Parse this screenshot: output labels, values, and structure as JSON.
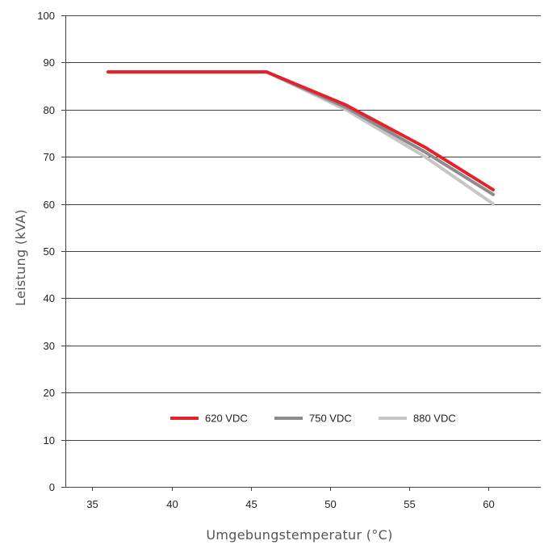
{
  "chart_data": {
    "type": "line",
    "xlabel": "Umgebungstemperatur (°C)",
    "ylabel": "Leistung (kVA)",
    "xlim": [
      33.3,
      63.3
    ],
    "ylim": [
      0,
      100
    ],
    "xticks": [
      35,
      40,
      45,
      50,
      55,
      60
    ],
    "yticks": [
      0,
      10,
      20,
      30,
      40,
      50,
      60,
      70,
      80,
      90,
      100
    ],
    "grid": "horizontal",
    "legend_position": "bottom-center-inside",
    "series": [
      {
        "name": "620 VDC",
        "color": "#e3222b",
        "x": [
          36,
          46,
          51,
          56,
          60.3
        ],
        "y": [
          88,
          88,
          81,
          72,
          63
        ]
      },
      {
        "name": "750 VDC",
        "color": "#8c8c8e",
        "x": [
          36,
          46,
          51,
          56,
          60.3
        ],
        "y": [
          88,
          88,
          80.5,
          71,
          62
        ]
      },
      {
        "name": "880 VDC",
        "color": "#c6c6c6",
        "x": [
          36,
          46,
          51,
          56,
          60.3
        ],
        "y": [
          88,
          88,
          80,
          70,
          60
        ]
      }
    ]
  }
}
